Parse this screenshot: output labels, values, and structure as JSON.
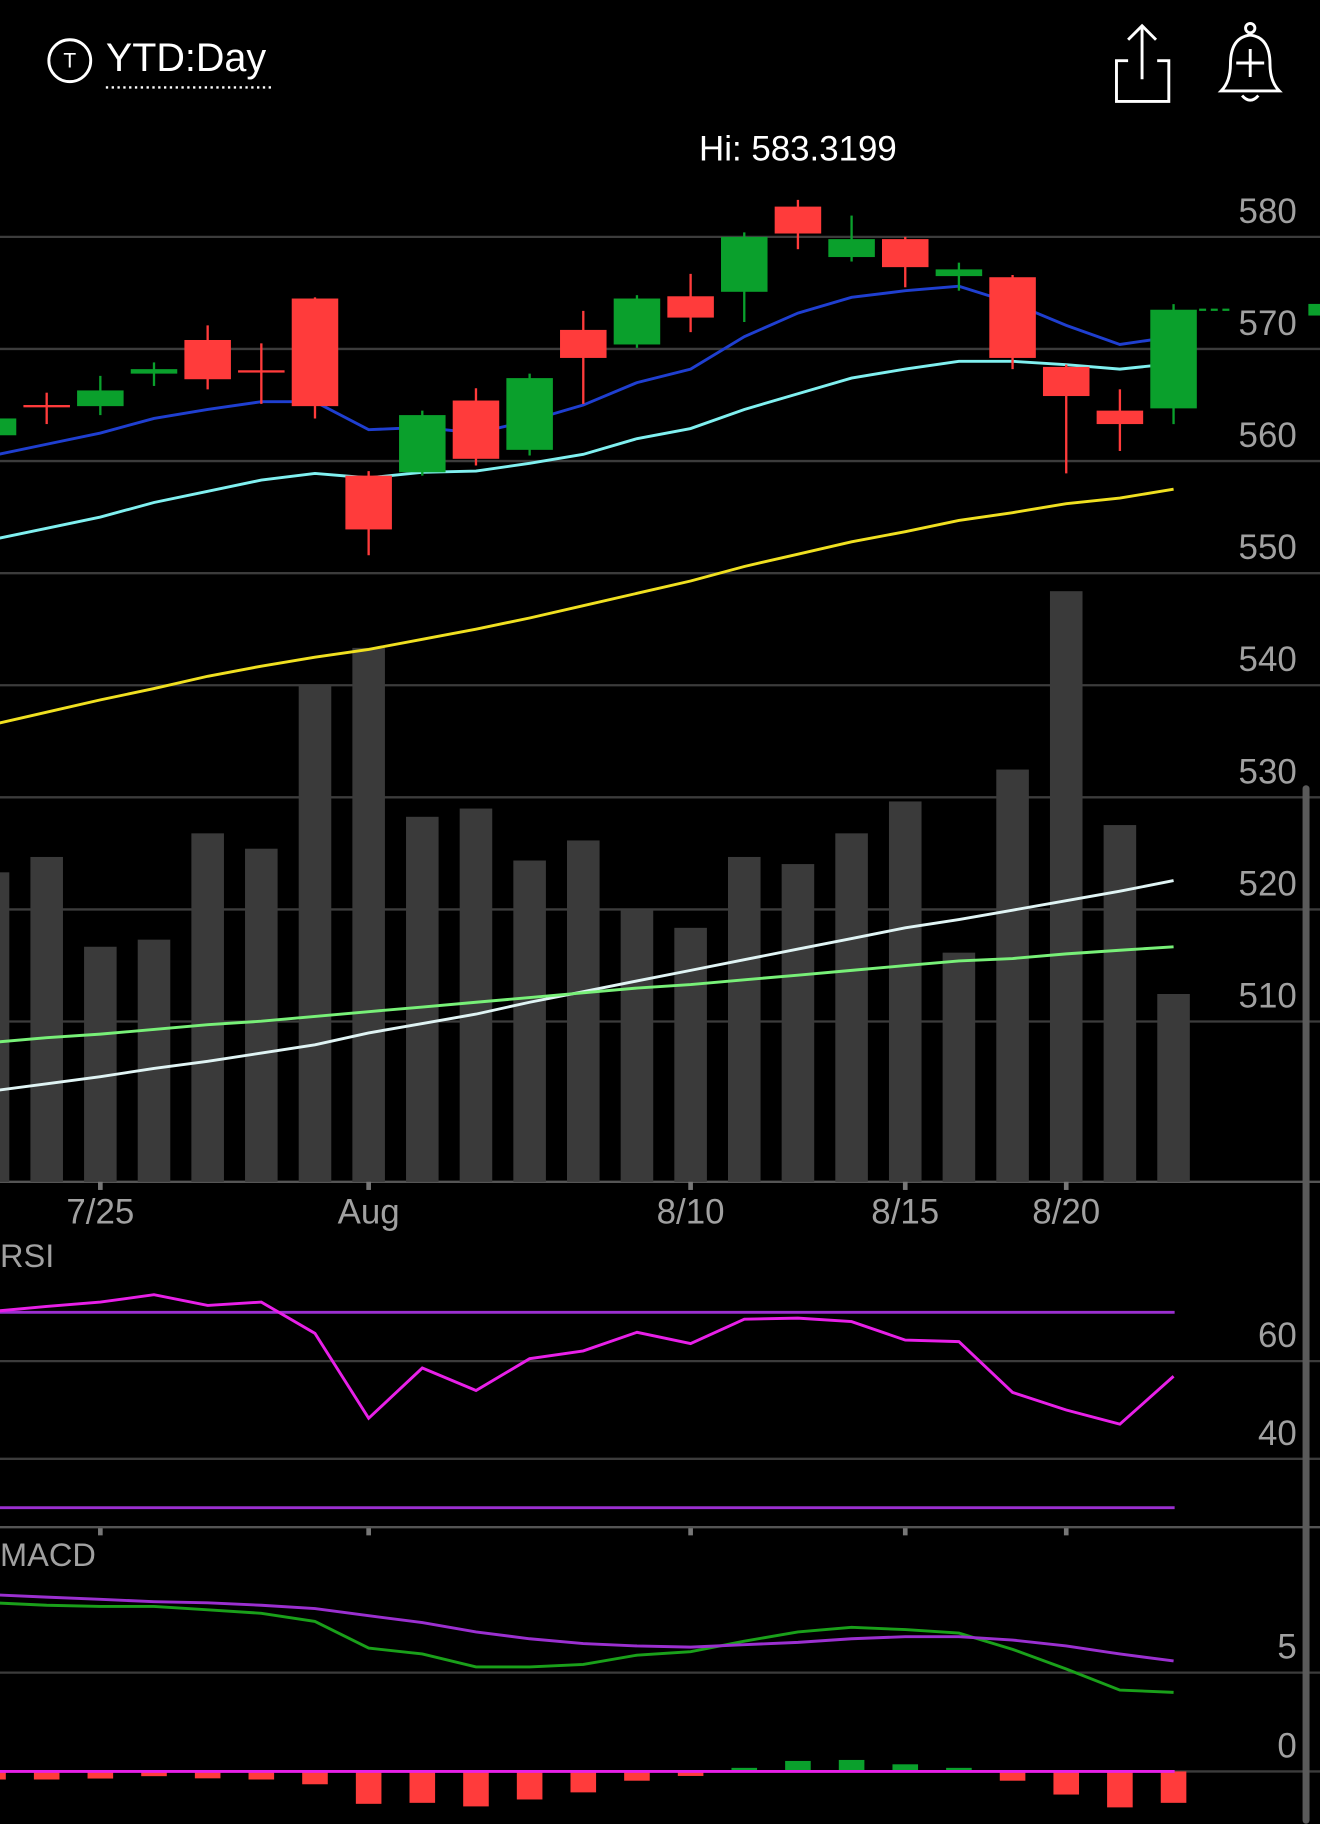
{
  "header": {
    "title": "YTD:Day"
  },
  "chart_data": [
    {
      "type": "candlestick",
      "annotation": "Hi: 583.3199",
      "categories": [
        null,
        null,
        "7/25",
        null,
        null,
        null,
        null,
        "Aug",
        null,
        null,
        null,
        null,
        null,
        "8/10",
        null,
        null,
        null,
        "8/15",
        null,
        null,
        "8/20",
        null,
        null
      ],
      "open": [
        562.3,
        565.0,
        564.9,
        567.8,
        570.8,
        568.1,
        574.5,
        558.7,
        559.0,
        565.4,
        561.0,
        571.7,
        570.4,
        574.7,
        575.1,
        582.7,
        578.2,
        579.8,
        576.5,
        576.4,
        568.4,
        564.5,
        564.7
      ],
      "high": [
        563.8,
        566.1,
        567.6,
        568.8,
        572.1,
        570.5,
        574.6,
        559.1,
        564.5,
        566.5,
        567.8,
        573.4,
        574.8,
        576.7,
        580.4,
        583.3,
        581.9,
        580.0,
        577.7,
        576.6,
        568.6,
        566.4,
        574.0
      ],
      "low": [
        562.3,
        563.3,
        564.1,
        566.7,
        566.4,
        565.1,
        563.8,
        551.6,
        558.7,
        559.6,
        560.5,
        565.1,
        570.1,
        571.5,
        572.4,
        578.9,
        577.8,
        575.5,
        575.2,
        568.2,
        558.9,
        560.9,
        563.3
      ],
      "close": [
        563.8,
        564.8,
        566.3,
        568.2,
        567.3,
        567.9,
        564.9,
        553.9,
        564.1,
        560.2,
        567.4,
        569.2,
        574.5,
        572.8,
        580.0,
        580.3,
        579.8,
        577.3,
        577.1,
        569.2,
        565.8,
        563.3,
        573.5
      ],
      "up_color": "#0aa02c",
      "down_color": "#ff3b3b",
      "ylim": [
        495.7,
        589.7
      ],
      "yticks": [
        510,
        520,
        530,
        540,
        550,
        560,
        570,
        580
      ],
      "grid": true,
      "series": [
        {
          "color": "#1f3fd0",
          "values": [
            560.5,
            561.5,
            562.5,
            563.8,
            564.6,
            565.3,
            565.3,
            562.8,
            563.0,
            562.5,
            563.6,
            565.0,
            567.0,
            568.2,
            571.1,
            573.2,
            574.6,
            575.2,
            575.6,
            574.1,
            572.1,
            570.4,
            571.1
          ]
        },
        {
          "color": "#80f0f0",
          "values": [
            553.0,
            554.0,
            555.0,
            556.3,
            557.3,
            558.3,
            558.9,
            558.5,
            559.0,
            559.1,
            559.8,
            560.6,
            562.0,
            562.9,
            564.6,
            566.0,
            567.4,
            568.2,
            568.9,
            568.9,
            568.6,
            568.2,
            568.7
          ]
        },
        {
          "color": "#f0e020",
          "values": [
            536.5,
            537.6,
            538.7,
            539.7,
            540.8,
            541.7,
            542.5,
            543.2,
            544.1,
            545.0,
            546.0,
            547.1,
            548.2,
            549.3,
            550.6,
            551.7,
            552.8,
            553.7,
            554.7,
            555.4,
            556.2,
            556.7,
            557.5
          ]
        }
      ],
      "volume": {
        "color": "#3a3a3a",
        "ylim": [
          0,
          89.2
        ],
        "values": [
          26.2,
          27.5,
          19.9,
          20.5,
          29.5,
          28.2,
          42.0,
          45.2,
          30.9,
          31.6,
          27.2,
          28.9,
          23.0,
          21.5,
          27.5,
          26.9,
          29.5,
          32.2,
          19.4,
          34.9,
          50.0,
          30.2,
          15.9
        ],
        "series": [
          {
            "color": "#e0f4f4",
            "values": [
              7.7,
              8.3,
              8.9,
              9.6,
              10.2,
              10.9,
              11.6,
              12.6,
              13.4,
              14.2,
              15.2,
              16.1,
              17.0,
              17.9,
              18.8,
              19.7,
              20.6,
              21.5,
              22.2,
              23.0,
              23.8,
              24.6,
              25.5
            ]
          },
          {
            "color": "#78f078",
            "values": [
              11.8,
              12.2,
              12.5,
              12.9,
              13.3,
              13.6,
              14.0,
              14.4,
              14.8,
              15.2,
              15.6,
              16.0,
              16.4,
              16.7,
              17.1,
              17.5,
              17.9,
              18.3,
              18.7,
              18.9,
              19.3,
              19.6,
              19.9
            ]
          }
        ]
      }
    },
    {
      "type": "line",
      "title": "RSI",
      "ylim": [
        26,
        84
      ],
      "yticks": [
        40,
        60
      ],
      "grid": true,
      "levels": [
        70,
        30
      ],
      "level_color": "#9b30d0",
      "series": [
        {
          "color": "#e820e8",
          "values": [
            70.2,
            71.2,
            72.1,
            73.6,
            71.4,
            72.1,
            65.7,
            48.3,
            58.6,
            54.0,
            60.5,
            62.1,
            65.9,
            63.6,
            68.6,
            68.8,
            68.1,
            64.3,
            64.0,
            53.6,
            50.0,
            47.1,
            56.9
          ]
        }
      ]
    },
    {
      "type": "macd",
      "title": "MACD",
      "ylim": [
        -2.65,
        11.65
      ],
      "yticks": [
        0,
        5
      ],
      "grid": true,
      "zero_color": "#e820e8",
      "series": [
        {
          "color": "#1aa01a",
          "values": [
            8.53,
            8.41,
            8.35,
            8.35,
            8.18,
            8.0,
            7.59,
            6.24,
            5.94,
            5.29,
            5.29,
            5.41,
            5.88,
            6.06,
            6.59,
            7.06,
            7.29,
            7.18,
            7.0,
            6.18,
            5.18,
            4.12,
            4.0
          ]
        },
        {
          "color": "#9b30d0",
          "values": [
            8.94,
            8.82,
            8.71,
            8.59,
            8.53,
            8.41,
            8.24,
            7.88,
            7.53,
            7.06,
            6.71,
            6.47,
            6.35,
            6.29,
            6.41,
            6.53,
            6.71,
            6.82,
            6.82,
            6.65,
            6.35,
            5.94,
            5.59
          ]
        }
      ],
      "histogram": {
        "up_color": "#0aa02c",
        "down_color": "#ff3b3b",
        "values": [
          -0.41,
          -0.41,
          -0.36,
          -0.24,
          -0.35,
          -0.41,
          -0.65,
          -1.64,
          -1.59,
          -1.77,
          -1.42,
          -1.06,
          -0.47,
          -0.23,
          0.18,
          0.53,
          0.58,
          0.36,
          0.18,
          -0.47,
          -1.17,
          -1.82,
          -1.59
        ]
      }
    }
  ]
}
